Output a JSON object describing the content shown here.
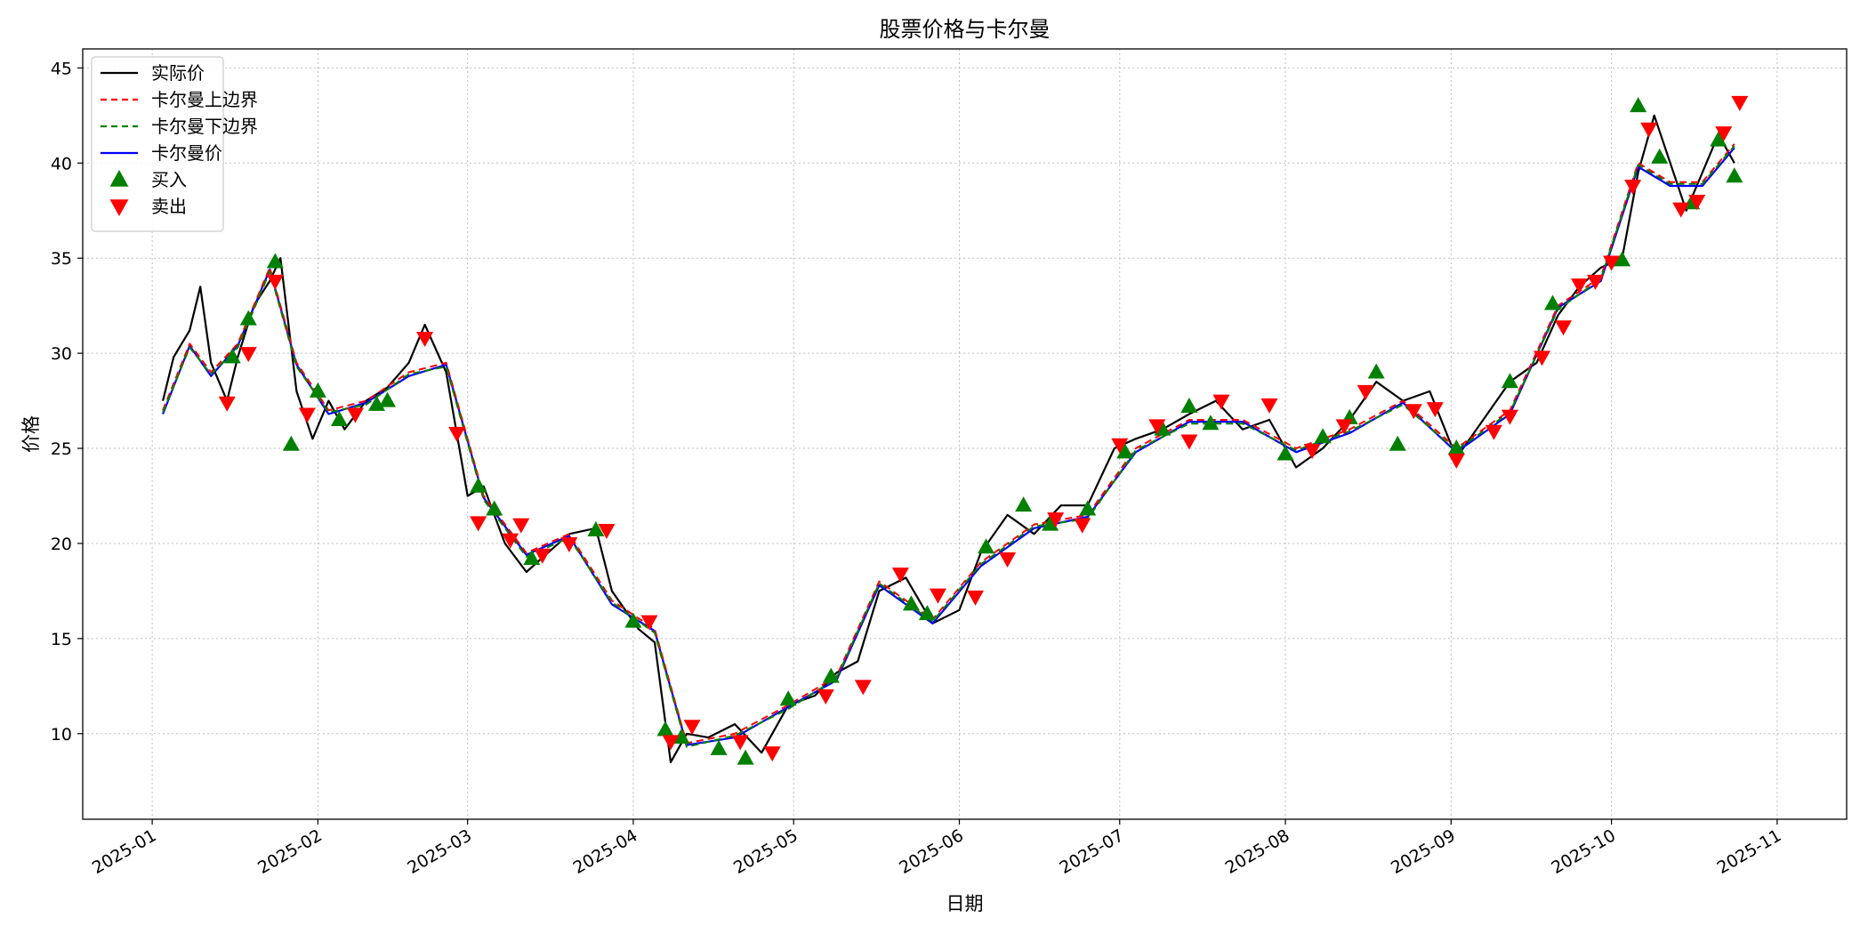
{
  "chart_data": {
    "type": "line",
    "title": "股票价格与卡尔曼",
    "xlabel": "日期",
    "ylabel": "价格",
    "xlim": [
      "2024-12-19",
      "2025-11-14"
    ],
    "ylim": [
      5.5,
      46
    ],
    "yticks": [
      10,
      15,
      20,
      25,
      30,
      35,
      40,
      45
    ],
    "xticks": [
      "2025-01",
      "2025-02",
      "2025-03",
      "2025-04",
      "2025-05",
      "2025-06",
      "2025-07",
      "2025-08",
      "2025-09",
      "2025-10",
      "2025-11"
    ],
    "grid": true,
    "legend_position": "top-left",
    "series": [
      {
        "name": "实际价",
        "color": "#000000",
        "style": "solid",
        "x": [
          "2025-01-03",
          "2025-01-05",
          "2025-01-08",
          "2025-01-10",
          "2025-01-12",
          "2025-01-15",
          "2025-01-17",
          "2025-01-20",
          "2025-01-23",
          "2025-01-25",
          "2025-01-28",
          "2025-01-31",
          "2025-02-03",
          "2025-02-06",
          "2025-02-10",
          "2025-02-14",
          "2025-02-18",
          "2025-02-21",
          "2025-02-25",
          "2025-03-01",
          "2025-03-04",
          "2025-03-08",
          "2025-03-12",
          "2025-03-16",
          "2025-03-20",
          "2025-03-25",
          "2025-03-28",
          "2025-04-02",
          "2025-04-05",
          "2025-04-08",
          "2025-04-11",
          "2025-04-15",
          "2025-04-20",
          "2025-04-25",
          "2025-04-30",
          "2025-05-05",
          "2025-05-09",
          "2025-05-13",
          "2025-05-17",
          "2025-05-22",
          "2025-05-27",
          "2025-06-01",
          "2025-06-05",
          "2025-06-10",
          "2025-06-15",
          "2025-06-20",
          "2025-06-25",
          "2025-06-30",
          "2025-07-04",
          "2025-07-09",
          "2025-07-14",
          "2025-07-19",
          "2025-07-24",
          "2025-07-29",
          "2025-08-03",
          "2025-08-08",
          "2025-08-13",
          "2025-08-18",
          "2025-08-23",
          "2025-08-28",
          "2025-09-02",
          "2025-09-07",
          "2025-09-12",
          "2025-09-17",
          "2025-09-21",
          "2025-09-25",
          "2025-09-29",
          "2025-10-03",
          "2025-10-06",
          "2025-10-09",
          "2025-10-12",
          "2025-10-15",
          "2025-10-18",
          "2025-10-21",
          "2025-10-24"
        ],
        "values": [
          27.5,
          29.8,
          31.2,
          33.5,
          29.5,
          27.5,
          29.8,
          32.5,
          33.8,
          35.0,
          28.0,
          25.5,
          27.5,
          26.0,
          27.5,
          28.2,
          29.5,
          31.5,
          29.0,
          22.5,
          23.0,
          20.0,
          18.5,
          19.5,
          20.5,
          20.8,
          17.5,
          15.5,
          14.8,
          8.5,
          10.0,
          9.8,
          10.5,
          9.0,
          11.5,
          12.0,
          13.2,
          13.8,
          17.5,
          18.2,
          15.8,
          16.5,
          19.5,
          21.5,
          20.5,
          22.0,
          22.0,
          25.0,
          25.5,
          26.0,
          26.8,
          27.5,
          26.0,
          26.5,
          24.0,
          25.0,
          26.5,
          28.5,
          27.5,
          28.0,
          24.5,
          26.5,
          28.5,
          29.5,
          32.0,
          33.5,
          34.5,
          35.0,
          39.5,
          42.5,
          40.0,
          37.5,
          39.5,
          41.5,
          40.0
        ]
      },
      {
        "name": "卡尔曼上边界",
        "color": "#ff0000",
        "style": "dashed",
        "x": [
          "2025-01-03",
          "2025-01-08",
          "2025-01-12",
          "2025-01-17",
          "2025-01-23",
          "2025-01-28",
          "2025-02-03",
          "2025-02-10",
          "2025-02-18",
          "2025-02-25",
          "2025-03-04",
          "2025-03-12",
          "2025-03-20",
          "2025-03-28",
          "2025-04-05",
          "2025-04-11",
          "2025-04-20",
          "2025-04-30",
          "2025-05-09",
          "2025-05-17",
          "2025-05-27",
          "2025-06-05",
          "2025-06-15",
          "2025-06-25",
          "2025-07-04",
          "2025-07-14",
          "2025-07-24",
          "2025-08-03",
          "2025-08-13",
          "2025-08-23",
          "2025-09-02",
          "2025-09-12",
          "2025-09-21",
          "2025-09-29",
          "2025-10-06",
          "2025-10-12",
          "2025-10-18",
          "2025-10-24"
        ],
        "values": [
          27.0,
          30.5,
          29.0,
          30.5,
          34.5,
          29.5,
          27.0,
          27.5,
          29.0,
          29.5,
          22.5,
          19.5,
          20.5,
          17.0,
          15.5,
          9.5,
          10.0,
          11.5,
          13.0,
          18.0,
          16.0,
          19.0,
          21.0,
          21.5,
          25.0,
          26.5,
          26.5,
          25.0,
          26.0,
          27.5,
          25.0,
          27.0,
          32.5,
          34.0,
          40.0,
          39.0,
          39.0,
          41.0
        ]
      },
      {
        "name": "卡尔曼下边界",
        "color": "#008000",
        "style": "dashed",
        "x": [
          "2025-01-03",
          "2025-01-08",
          "2025-01-12",
          "2025-01-17",
          "2025-01-23",
          "2025-01-28",
          "2025-02-03",
          "2025-02-10",
          "2025-02-18",
          "2025-02-25",
          "2025-03-04",
          "2025-03-12",
          "2025-03-20",
          "2025-03-28",
          "2025-04-05",
          "2025-04-11",
          "2025-04-20",
          "2025-04-30",
          "2025-05-09",
          "2025-05-17",
          "2025-05-27",
          "2025-06-05",
          "2025-06-15",
          "2025-06-25",
          "2025-07-04",
          "2025-07-14",
          "2025-07-24",
          "2025-08-03",
          "2025-08-13",
          "2025-08-23",
          "2025-09-02",
          "2025-09-12",
          "2025-09-21",
          "2025-09-29",
          "2025-10-06",
          "2025-10-12",
          "2025-10-18",
          "2025-10-24"
        ],
        "values": [
          26.9,
          30.3,
          28.9,
          30.3,
          34.3,
          29.3,
          26.9,
          27.3,
          28.9,
          29.3,
          22.3,
          19.3,
          20.3,
          16.9,
          15.3,
          9.3,
          9.9,
          11.3,
          12.9,
          17.9,
          15.9,
          18.9,
          20.9,
          21.3,
          24.9,
          26.3,
          26.3,
          24.9,
          25.9,
          27.3,
          24.9,
          26.9,
          32.3,
          33.9,
          39.9,
          38.9,
          38.9,
          40.9
        ]
      },
      {
        "name": "卡尔曼价",
        "color": "#0000ff",
        "style": "solid",
        "x": [
          "2025-01-03",
          "2025-01-08",
          "2025-01-12",
          "2025-01-17",
          "2025-01-23",
          "2025-01-28",
          "2025-02-03",
          "2025-02-10",
          "2025-02-18",
          "2025-02-25",
          "2025-03-04",
          "2025-03-12",
          "2025-03-20",
          "2025-03-28",
          "2025-04-05",
          "2025-04-11",
          "2025-04-20",
          "2025-04-30",
          "2025-05-09",
          "2025-05-17",
          "2025-05-27",
          "2025-06-05",
          "2025-06-15",
          "2025-06-25",
          "2025-07-04",
          "2025-07-14",
          "2025-07-24",
          "2025-08-03",
          "2025-08-13",
          "2025-08-23",
          "2025-09-02",
          "2025-09-12",
          "2025-09-21",
          "2025-09-29",
          "2025-10-06",
          "2025-10-12",
          "2025-10-18",
          "2025-10-24"
        ],
        "values": [
          26.8,
          30.4,
          28.8,
          30.4,
          34.4,
          29.4,
          26.8,
          27.4,
          28.8,
          29.4,
          22.4,
          19.4,
          20.4,
          16.8,
          15.4,
          9.4,
          9.8,
          11.4,
          12.8,
          17.8,
          15.8,
          18.8,
          20.8,
          21.4,
          24.8,
          26.4,
          26.4,
          24.8,
          25.8,
          27.4,
          24.8,
          26.8,
          32.4,
          33.8,
          39.8,
          38.8,
          38.8,
          40.8
        ]
      }
    ],
    "markers": [
      {
        "name": "买入",
        "color": "#008000",
        "symbol": "triangle-up",
        "x": [
          "2025-01-16",
          "2025-01-19",
          "2025-01-24",
          "2025-01-27",
          "2025-02-01",
          "2025-02-05",
          "2025-02-12",
          "2025-02-14",
          "2025-03-03",
          "2025-03-06",
          "2025-03-13",
          "2025-03-25",
          "2025-04-01",
          "2025-04-07",
          "2025-04-10",
          "2025-04-17",
          "2025-04-22",
          "2025-04-30",
          "2025-05-08",
          "2025-05-23",
          "2025-05-26",
          "2025-06-06",
          "2025-06-13",
          "2025-06-18",
          "2025-06-25",
          "2025-07-02",
          "2025-07-09",
          "2025-07-14",
          "2025-07-18",
          "2025-08-01",
          "2025-08-08",
          "2025-08-13",
          "2025-08-18",
          "2025-08-22",
          "2025-09-02",
          "2025-09-12",
          "2025-09-20",
          "2025-10-03",
          "2025-10-06",
          "2025-10-10",
          "2025-10-16",
          "2025-10-21",
          "2025-10-24"
        ],
        "values": [
          29.8,
          31.8,
          34.8,
          25.2,
          28.0,
          26.5,
          27.3,
          27.5,
          23.0,
          21.8,
          19.2,
          20.7,
          15.9,
          10.2,
          9.8,
          9.2,
          8.7,
          11.8,
          13.0,
          16.8,
          16.3,
          19.8,
          22.0,
          21.0,
          21.8,
          24.8,
          26.0,
          27.2,
          26.3,
          24.7,
          25.6,
          26.6,
          29.0,
          25.2,
          25.0,
          28.5,
          32.6,
          34.9,
          43.0,
          40.3,
          37.9,
          41.2,
          39.3
        ]
      },
      {
        "name": "卖出",
        "color": "#ff0000",
        "symbol": "triangle-down",
        "x": [
          "2025-01-15",
          "2025-01-19",
          "2025-01-24",
          "2025-01-30",
          "2025-02-08",
          "2025-02-21",
          "2025-02-27",
          "2025-03-03",
          "2025-03-09",
          "2025-03-11",
          "2025-03-15",
          "2025-03-20",
          "2025-03-27",
          "2025-04-04",
          "2025-04-08",
          "2025-04-12",
          "2025-04-21",
          "2025-04-27",
          "2025-05-07",
          "2025-05-14",
          "2025-05-21",
          "2025-05-28",
          "2025-06-04",
          "2025-06-10",
          "2025-06-19",
          "2025-06-24",
          "2025-07-01",
          "2025-07-08",
          "2025-07-14",
          "2025-07-20",
          "2025-07-29",
          "2025-08-06",
          "2025-08-12",
          "2025-08-16",
          "2025-08-25",
          "2025-08-29",
          "2025-09-02",
          "2025-09-09",
          "2025-09-12",
          "2025-09-18",
          "2025-09-22",
          "2025-09-25",
          "2025-09-28",
          "2025-10-01",
          "2025-10-05",
          "2025-10-08",
          "2025-10-14",
          "2025-10-17",
          "2025-10-22",
          "2025-10-25"
        ],
        "values": [
          27.4,
          30.0,
          33.8,
          26.8,
          26.8,
          30.8,
          25.8,
          21.1,
          20.2,
          21.0,
          19.4,
          20.0,
          20.7,
          15.9,
          9.6,
          10.4,
          9.6,
          9.0,
          12.0,
          12.5,
          18.4,
          17.3,
          17.2,
          19.2,
          21.3,
          21.0,
          25.2,
          26.2,
          25.4,
          27.5,
          27.3,
          24.9,
          26.2,
          28.0,
          27.0,
          27.1,
          24.4,
          25.9,
          26.7,
          29.8,
          31.4,
          33.6,
          33.8,
          34.8,
          38.8,
          41.8,
          37.6,
          38.0,
          41.6,
          43.2
        ]
      }
    ]
  }
}
